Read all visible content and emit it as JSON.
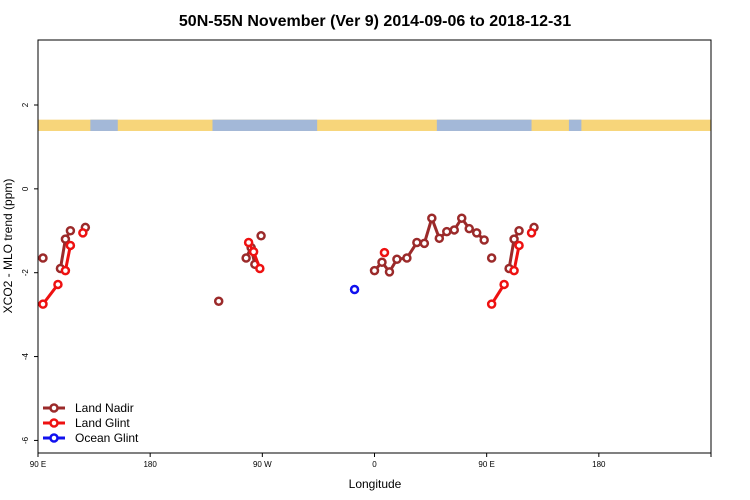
{
  "chart_data": {
    "type": "line",
    "title": "50N-55N November (Ver 9)   2014-09-06 to 2018-12-31",
    "xlabel": "Longitude",
    "ylabel": "XCO2 - MLO trend (ppm)",
    "xlim": [
      -90,
      180
    ],
    "ylim": [
      -6.3,
      3.55
    ],
    "x_ticks": [
      {
        "value": -90,
        "label": "90 E"
      },
      {
        "value": -45,
        "label": "180"
      },
      {
        "value": 0,
        "label": "90 W"
      },
      {
        "value": 45,
        "label": "0"
      },
      {
        "value": 90,
        "label": "90 E"
      },
      {
        "value": 135,
        "label": "180"
      }
    ],
    "y_ticks": [
      {
        "value": 2,
        "label": "2"
      },
      {
        "value": 0,
        "label": "0"
      },
      {
        "value": -2,
        "label": "-2"
      },
      {
        "value": -4,
        "label": "-4"
      },
      {
        "value": -6,
        "label": "-6"
      }
    ],
    "grid": false,
    "legend_position": "bottom-left",
    "land_mask_band": {
      "y_range": [
        1.38,
        1.65
      ],
      "land_color": "#f7d57a",
      "ocean_color": "#a3b8d8"
    },
    "series": [
      {
        "name": "Land Nadir",
        "color": "#9b2a2a",
        "segments": [
          [
            [
              -88,
              -1.65
            ]
          ],
          [
            [
              -81,
              -1.9
            ],
            [
              -79,
              -1.2
            ],
            [
              -77,
              -1.0
            ]
          ],
          [
            [
              -71,
              -0.92
            ]
          ],
          [
            [
              -17.5,
              -2.68
            ]
          ],
          [
            [
              -6.5,
              -1.65
            ],
            [
              -4.5,
              -1.4
            ],
            [
              -3,
              -1.8
            ]
          ],
          [
            [
              -0.5,
              -1.12
            ]
          ],
          [
            [
              45,
              -1.95
            ],
            [
              48,
              -1.75
            ],
            [
              51,
              -1.98
            ],
            [
              54,
              -1.68
            ],
            [
              58,
              -1.65
            ],
            [
              62,
              -1.28
            ],
            [
              65,
              -1.3
            ],
            [
              68,
              -0.7
            ],
            [
              71,
              -1.18
            ],
            [
              74,
              -1.02
            ],
            [
              77,
              -0.98
            ],
            [
              80,
              -0.7
            ],
            [
              83,
              -0.95
            ],
            [
              86,
              -1.05
            ],
            [
              89,
              -1.22
            ]
          ],
          [
            [
              92,
              -1.65
            ]
          ],
          [
            [
              99,
              -1.9
            ],
            [
              101,
              -1.2
            ],
            [
              103,
              -1.0
            ]
          ],
          [
            [
              109,
              -0.92
            ]
          ]
        ]
      },
      {
        "name": "Land Glint",
        "color": "#ee1111",
        "segments": [
          [
            [
              -88,
              -2.75
            ],
            [
              -82,
              -2.28
            ]
          ],
          [
            [
              -79,
              -1.95
            ],
            [
              -77,
              -1.35
            ]
          ],
          [
            [
              -72,
              -1.05
            ]
          ],
          [
            [
              -5.5,
              -1.28
            ],
            [
              -3.5,
              -1.5
            ],
            [
              -1,
              -1.9
            ]
          ],
          [
            [
              49,
              -1.52
            ]
          ],
          [
            [
              92,
              -2.75
            ],
            [
              97,
              -2.28
            ]
          ],
          [
            [
              101,
              -1.95
            ],
            [
              103,
              -1.35
            ]
          ],
          [
            [
              108,
              -1.05
            ]
          ]
        ]
      },
      {
        "name": "Ocean Glint",
        "color": "#1111ee",
        "segments": [
          [
            [
              37,
              -2.4
            ]
          ]
        ]
      }
    ]
  }
}
